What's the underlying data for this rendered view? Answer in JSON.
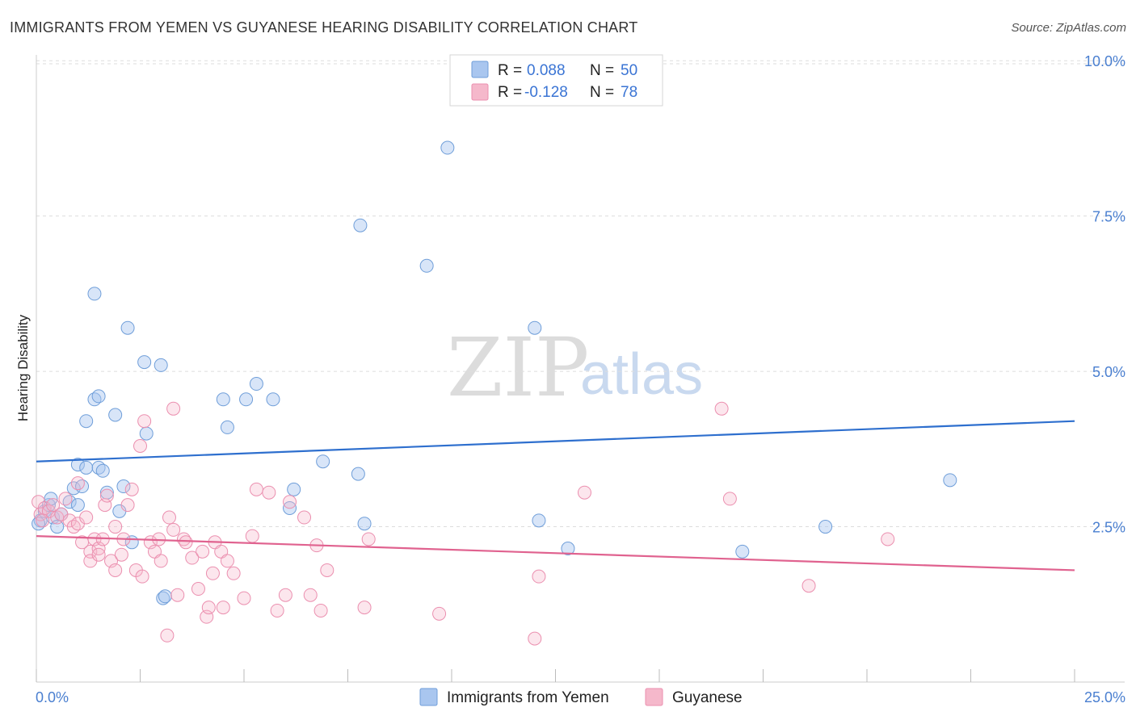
{
  "header": {
    "title": "IMMIGRANTS FROM YEMEN VS GUYANESE HEARING DISABILITY CORRELATION CHART",
    "source": "Source: ZipAtlas.com"
  },
  "watermark": {
    "zip": "ZIP",
    "atlas": "atlas"
  },
  "stats_legend": {
    "rows": [
      {
        "r_label": "R =",
        "r_value": "0.088",
        "n_label": "N =",
        "n_value": "50",
        "color": "#a9c6ef"
      },
      {
        "r_label": "R =",
        "r_value": "-0.128",
        "n_label": "N =",
        "n_value": "78",
        "color": "#f5b8cb"
      }
    ]
  },
  "bottom_legend": {
    "items": [
      {
        "label": "Immigrants from Yemen",
        "color": "#a9c6ef"
      },
      {
        "label": "Guyanese",
        "color": "#f5b8cb"
      }
    ]
  },
  "chart_data": {
    "type": "scatter",
    "title": "IMMIGRANTS FROM YEMEN VS GUYANESE HEARING DISABILITY CORRELATION CHART",
    "xlabel": "",
    "ylabel": "Hearing Disability",
    "xlim": [
      0,
      25
    ],
    "ylim": [
      0,
      10.25
    ],
    "x_tick_labels": [
      {
        "value": 0,
        "label": "0.0%"
      },
      {
        "value": 25,
        "label": "25.0%"
      }
    ],
    "x_minor_ticks": [
      0,
      2.5,
      5,
      7.5,
      10,
      12.5,
      15,
      17.5,
      20,
      22.5,
      25
    ],
    "y_ticks": [
      {
        "value": 2.5,
        "label": "2.5%"
      },
      {
        "value": 5.0,
        "label": "5.0%"
      },
      {
        "value": 7.5,
        "label": "7.5%"
      },
      {
        "value": 10.0,
        "label": "10.0%"
      }
    ],
    "grid": true,
    "series": [
      {
        "name": "Immigrants from Yemen",
        "color": "#a9c6ef",
        "stroke": "#6f9ed9",
        "line_color": "#2e6fce",
        "trend": [
          [
            0,
            3.55
          ],
          [
            25,
            4.2
          ]
        ],
        "points": [
          [
            0.1,
            2.6
          ],
          [
            0.2,
            2.75
          ],
          [
            0.3,
            2.85
          ],
          [
            0.35,
            2.95
          ],
          [
            0.4,
            2.65
          ],
          [
            0.5,
            2.5
          ],
          [
            0.6,
            2.7
          ],
          [
            0.8,
            2.9
          ],
          [
            0.9,
            3.12
          ],
          [
            1.0,
            2.85
          ],
          [
            1.0,
            3.5
          ],
          [
            1.1,
            3.15
          ],
          [
            1.2,
            4.2
          ],
          [
            1.2,
            3.45
          ],
          [
            1.4,
            6.25
          ],
          [
            1.4,
            4.55
          ],
          [
            1.5,
            4.6
          ],
          [
            1.5,
            3.45
          ],
          [
            1.6,
            3.4
          ],
          [
            1.7,
            3.05
          ],
          [
            1.9,
            4.3
          ],
          [
            2.0,
            2.75
          ],
          [
            2.1,
            3.15
          ],
          [
            2.2,
            5.7
          ],
          [
            2.3,
            2.25
          ],
          [
            2.6,
            5.15
          ],
          [
            2.65,
            4.0
          ],
          [
            3.0,
            5.1
          ],
          [
            3.05,
            1.35
          ],
          [
            3.1,
            1.38
          ],
          [
            4.5,
            4.55
          ],
          [
            4.6,
            4.1
          ],
          [
            5.05,
            4.55
          ],
          [
            5.3,
            4.8
          ],
          [
            5.7,
            4.55
          ],
          [
            6.1,
            2.8
          ],
          [
            6.2,
            3.1
          ],
          [
            6.9,
            3.55
          ],
          [
            7.75,
            3.35
          ],
          [
            7.8,
            7.35
          ],
          [
            7.9,
            2.55
          ],
          [
            9.4,
            6.7
          ],
          [
            9.9,
            8.6
          ],
          [
            12.0,
            5.7
          ],
          [
            12.1,
            2.6
          ],
          [
            12.8,
            2.15
          ],
          [
            17.0,
            2.1
          ],
          [
            19.0,
            2.5
          ],
          [
            22.0,
            3.25
          ],
          [
            0.05,
            2.55
          ]
        ]
      },
      {
        "name": "Guyanese",
        "color": "#f5b8cb",
        "stroke": "#eb8faf",
        "line_color": "#e0628f",
        "trend": [
          [
            0,
            2.35
          ],
          [
            25,
            1.8
          ]
        ],
        "points": [
          [
            0.05,
            2.9
          ],
          [
            0.1,
            2.7
          ],
          [
            0.2,
            2.8
          ],
          [
            0.3,
            2.75
          ],
          [
            0.4,
            2.85
          ],
          [
            0.5,
            2.65
          ],
          [
            0.6,
            2.7
          ],
          [
            0.7,
            2.95
          ],
          [
            0.8,
            2.6
          ],
          [
            0.9,
            2.5
          ],
          [
            1.0,
            2.55
          ],
          [
            1.0,
            3.2
          ],
          [
            1.1,
            2.25
          ],
          [
            1.2,
            2.65
          ],
          [
            1.3,
            2.1
          ],
          [
            1.3,
            1.95
          ],
          [
            1.4,
            2.3
          ],
          [
            1.5,
            2.15
          ],
          [
            1.5,
            2.05
          ],
          [
            1.6,
            2.3
          ],
          [
            1.65,
            2.85
          ],
          [
            1.7,
            3.0
          ],
          [
            1.8,
            1.95
          ],
          [
            1.9,
            2.5
          ],
          [
            1.9,
            1.8
          ],
          [
            2.05,
            2.05
          ],
          [
            2.1,
            2.3
          ],
          [
            2.2,
            2.85
          ],
          [
            2.3,
            3.1
          ],
          [
            2.4,
            1.8
          ],
          [
            2.5,
            3.8
          ],
          [
            2.55,
            1.7
          ],
          [
            2.6,
            4.2
          ],
          [
            2.75,
            2.25
          ],
          [
            2.85,
            2.1
          ],
          [
            2.95,
            2.3
          ],
          [
            3.0,
            1.95
          ],
          [
            3.15,
            0.75
          ],
          [
            3.2,
            2.65
          ],
          [
            3.3,
            2.45
          ],
          [
            3.3,
            4.4
          ],
          [
            3.4,
            1.4
          ],
          [
            3.55,
            2.3
          ],
          [
            3.6,
            2.25
          ],
          [
            3.75,
            2.0
          ],
          [
            3.9,
            1.5
          ],
          [
            4.0,
            2.1
          ],
          [
            4.1,
            1.05
          ],
          [
            4.15,
            1.2
          ],
          [
            4.25,
            1.75
          ],
          [
            4.3,
            2.25
          ],
          [
            4.45,
            2.1
          ],
          [
            4.5,
            1.2
          ],
          [
            4.6,
            1.95
          ],
          [
            4.75,
            1.75
          ],
          [
            5.0,
            1.35
          ],
          [
            5.2,
            2.35
          ],
          [
            5.3,
            3.1
          ],
          [
            5.6,
            3.05
          ],
          [
            5.8,
            1.15
          ],
          [
            6.0,
            1.4
          ],
          [
            6.1,
            2.9
          ],
          [
            6.45,
            2.65
          ],
          [
            6.6,
            1.4
          ],
          [
            6.75,
            2.2
          ],
          [
            6.85,
            1.15
          ],
          [
            7.0,
            1.8
          ],
          [
            7.9,
            1.2
          ],
          [
            8.0,
            2.3
          ],
          [
            9.7,
            1.1
          ],
          [
            12.0,
            0.7
          ],
          [
            12.1,
            1.7
          ],
          [
            13.2,
            3.05
          ],
          [
            16.5,
            4.4
          ],
          [
            16.7,
            2.95
          ],
          [
            18.6,
            1.55
          ],
          [
            20.5,
            2.3
          ],
          [
            0.15,
            2.6
          ]
        ]
      }
    ]
  }
}
